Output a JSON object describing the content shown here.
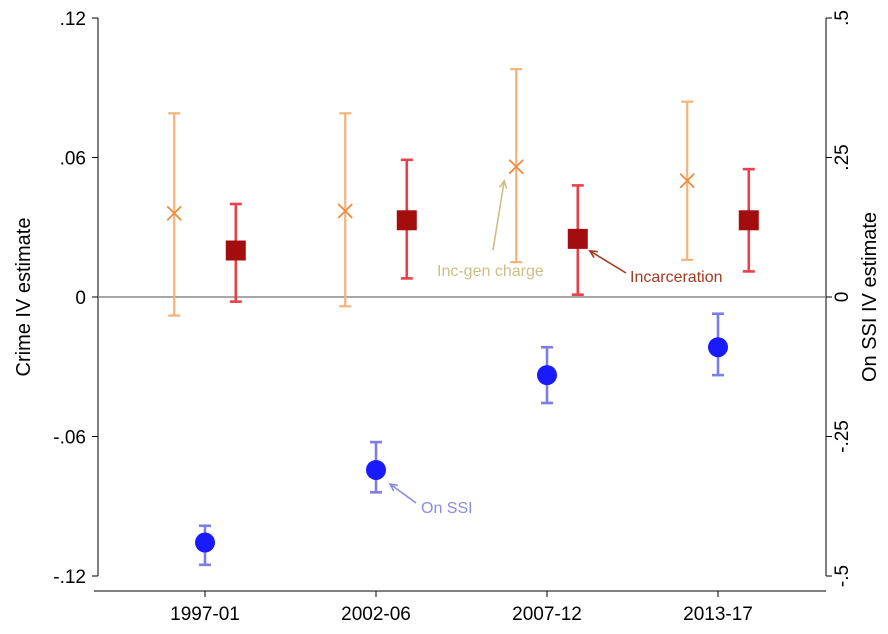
{
  "chart_data": {
    "type": "scatter",
    "categories": [
      "1997-01",
      "2002-06",
      "2007-12",
      "2013-17"
    ],
    "ylabel": "Crime IV estimate",
    "ylabel_right": "On SSI IV estimate",
    "ylim": [
      -0.12,
      0.12
    ],
    "ylim_right": [
      -0.5,
      0.5
    ],
    "yticks": [
      {
        "value": 0.12,
        "label": ".12"
      },
      {
        "value": 0.06,
        "label": ".06"
      },
      {
        "value": 0,
        "label": "0"
      },
      {
        "value": -0.06,
        "label": "-.06"
      },
      {
        "value": -0.12,
        "label": "-.12"
      }
    ],
    "yticks_right": [
      {
        "value": 0.5,
        "label": ".5"
      },
      {
        "value": 0.25,
        "label": ".25"
      },
      {
        "value": 0,
        "label": "0"
      },
      {
        "value": -0.25,
        "label": "-.25"
      },
      {
        "value": -0.5,
        "label": "-.5"
      }
    ],
    "zero_line": true,
    "series": [
      {
        "key": "inc_gen",
        "axis": "left",
        "marker": "x",
        "color": "#f08a3c",
        "ci_color": "#f7b27a",
        "offset": -0.18,
        "points": [
          {
            "y": 0.036,
            "lo": -0.008,
            "hi": 0.079
          },
          {
            "y": 0.037,
            "lo": -0.004,
            "hi": 0.079
          },
          {
            "y": 0.056,
            "lo": 0.015,
            "hi": 0.098
          },
          {
            "y": 0.05,
            "lo": 0.016,
            "hi": 0.084
          }
        ]
      },
      {
        "key": "incarceration",
        "axis": "left",
        "marker": "square",
        "color": "#a40d0d",
        "ci_color": "#e8414a",
        "offset": 0.18,
        "points": [
          {
            "y": 0.02,
            "lo": -0.002,
            "hi": 0.04
          },
          {
            "y": 0.033,
            "lo": 0.008,
            "hi": 0.059
          },
          {
            "y": 0.025,
            "lo": 0.001,
            "hi": 0.048
          },
          {
            "y": 0.033,
            "lo": 0.011,
            "hi": 0.055
          }
        ]
      },
      {
        "key": "on_ssi",
        "axis": "right",
        "marker": "circle",
        "color": "#1a1aff",
        "ci_color": "#7d7de8",
        "offset": 0,
        "points": [
          {
            "y": -0.44,
            "lo": -0.48,
            "hi": -0.41
          },
          {
            "y": -0.31,
            "lo": -0.35,
            "hi": -0.26
          },
          {
            "y": -0.14,
            "lo": -0.19,
            "hi": -0.09
          },
          {
            "y": -0.09,
            "lo": -0.14,
            "hi": -0.03
          }
        ]
      }
    ],
    "annotations": [
      {
        "text": "Inc-gen charge",
        "color": "#cbbf85",
        "series": "inc_gen",
        "index": 2
      },
      {
        "text": "Incarceration",
        "color": "#a13c22",
        "series": "incarceration",
        "index": 2
      },
      {
        "text": "On SSI",
        "color": "#8a8ae0",
        "series": "on_ssi",
        "index": 1
      }
    ]
  }
}
